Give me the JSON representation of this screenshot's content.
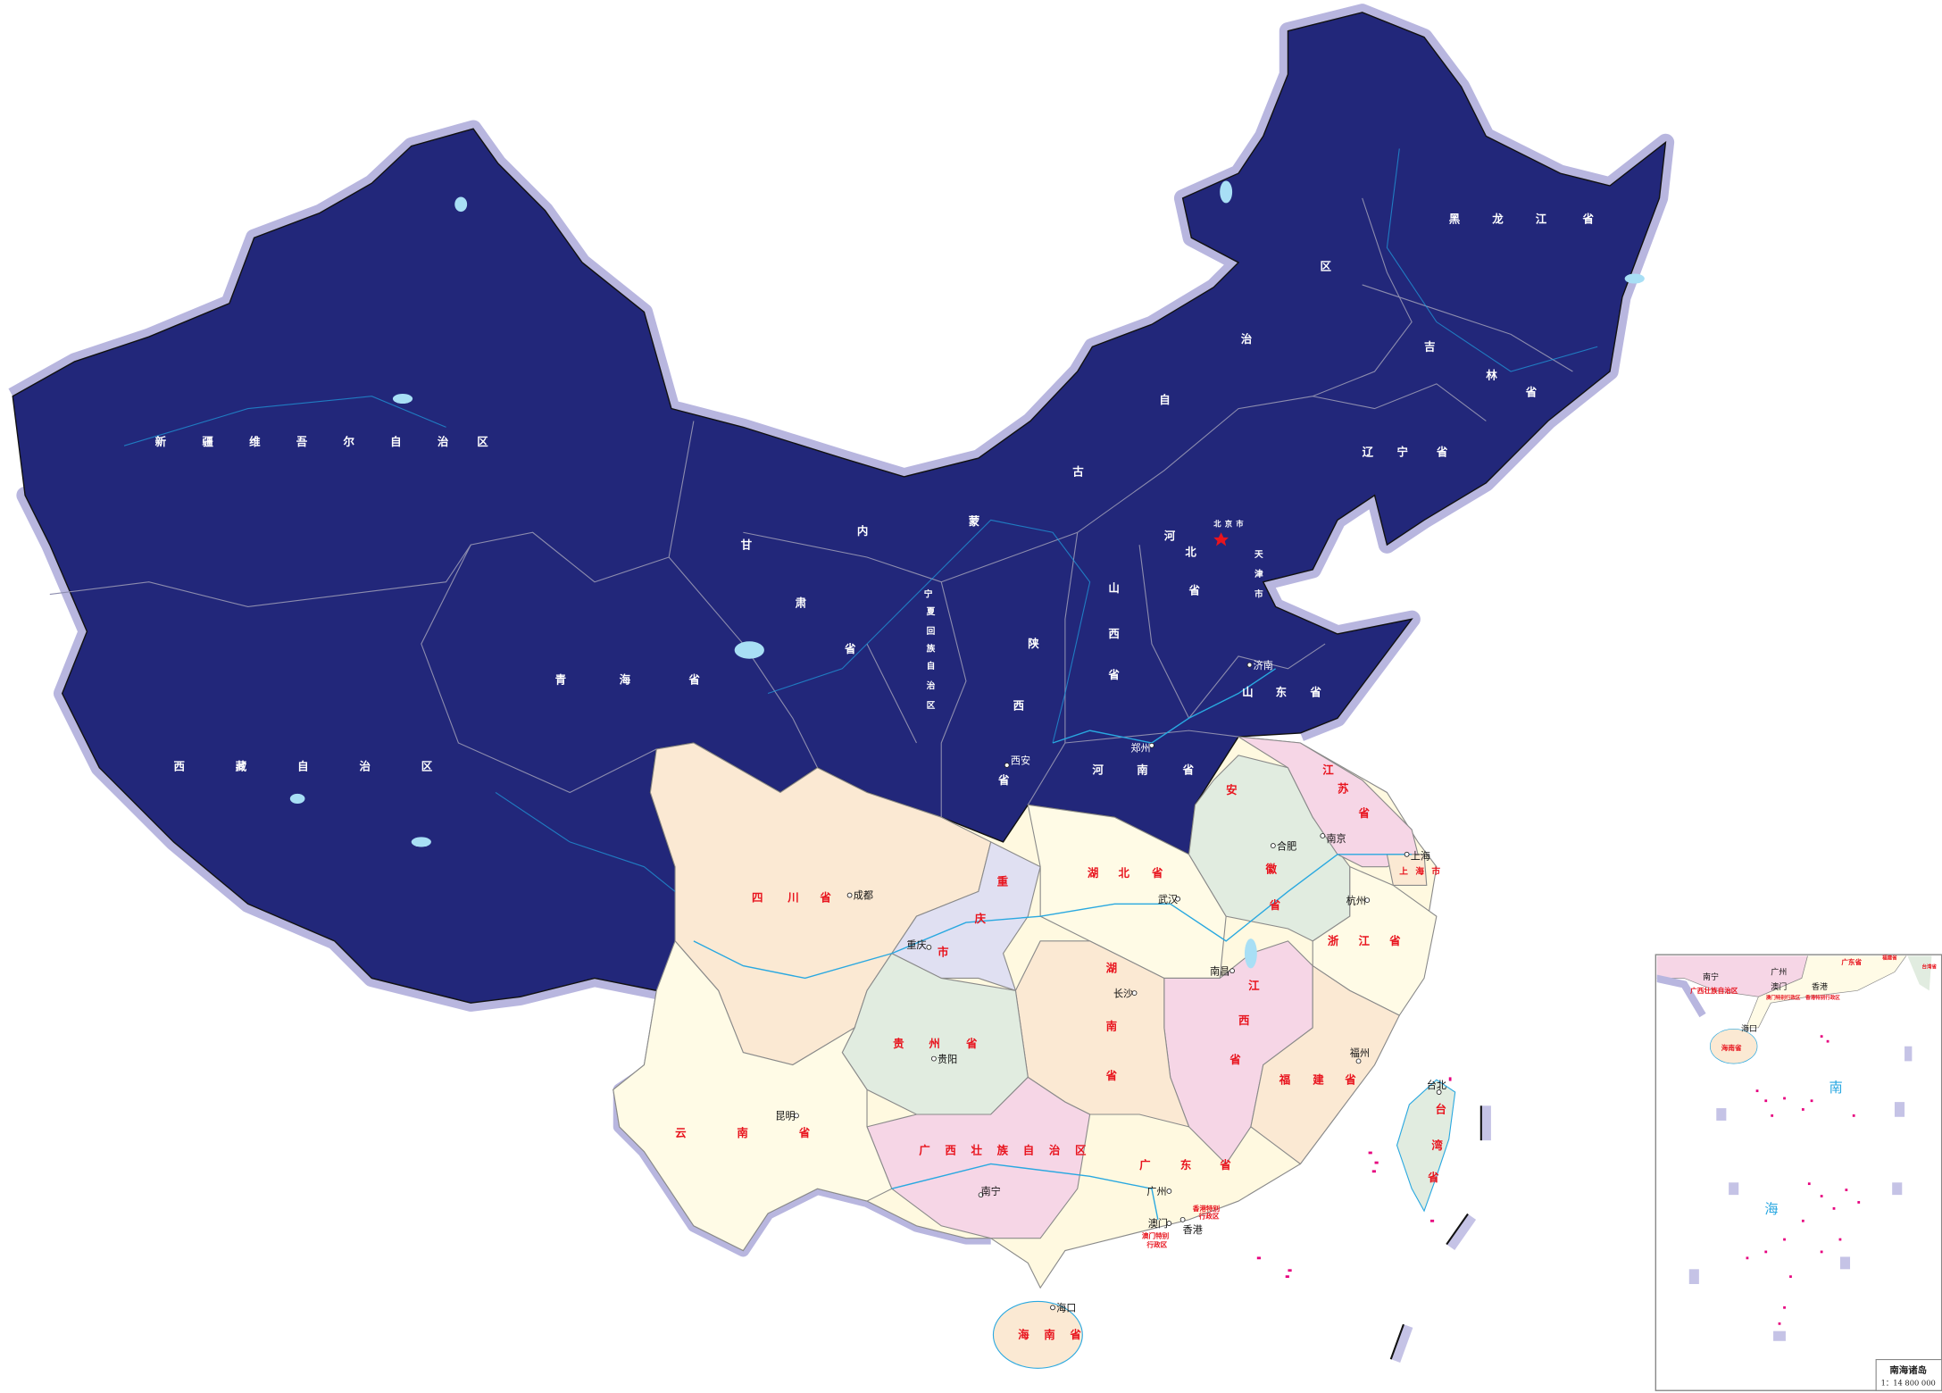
{
  "colors": {
    "north_fill": "#22277a",
    "halo": "#b8b6df",
    "peach": "#fbe9d3",
    "cream": "#fffbe6",
    "green": "#e1ece0",
    "pink": "#f6d6e6",
    "lavender": "#e0e0f2",
    "label_red": "#e8141e",
    "river": "#29a8e0",
    "island": "#e6007e"
  },
  "provinces_north": {
    "xinjiang": "新疆维吾尔自治区",
    "xizang": "西藏自治区",
    "qinghai": "青海省",
    "gansu": "甘肃省",
    "neimenggu": "内蒙古自治区",
    "heilongjiang": "黑龙江省",
    "jilin": "吉林省",
    "liaoning": "辽宁省",
    "beijing": "北京市",
    "tianjin": "天津市",
    "hebei": "河北省",
    "shanxi": "山西省",
    "shandong": "山东省",
    "henan": "河南省",
    "shaanxi": "陕西省",
    "ningxia": "宁夏回族自治区"
  },
  "provinces_south": {
    "sichuan": "四川省",
    "chongqing": "重庆市",
    "hubei": "湖北省",
    "anhui": "安徽省",
    "jiangsu": "江苏省",
    "shanghai": "上海市",
    "zhejiang": "浙江省",
    "hunan": "湖南省",
    "jiangxi": "江西省",
    "fujian": "福建省",
    "guizhou": "贵州省",
    "yunnan": "云南省",
    "guangxi": "广西壮族自治区",
    "guangdong": "广东省",
    "hainan": "海南省",
    "taiwan": "台湾省",
    "hongkong_1": "香港特别",
    "hongkong_2": "行政区",
    "macau_1": "澳门特别",
    "macau_2": "行政区"
  },
  "cities": {
    "chengdu": "成都",
    "chongqing": "重庆",
    "guiyang": "贵阳",
    "kunming": "昆明",
    "nanning": "南宁",
    "guangzhou": "广州",
    "macau": "澳门",
    "hongkong": "香港",
    "haikou": "海口",
    "changsha": "长沙",
    "wuhan": "武汉",
    "nanchang": "南昌",
    "fuzhou": "福州",
    "hangzhou": "杭州",
    "hefei": "合肥",
    "nanjing": "南京",
    "shanghai": "上海",
    "taipei": "台北",
    "jinan": "济南",
    "zhengzhou": "郑州",
    "xian": "西安"
  },
  "inset": {
    "sea_char_1": "南",
    "sea_char_2": "海",
    "title": "南海诸岛",
    "scale": "1：14 800 000",
    "labels": {
      "nanning": "南宁",
      "guangxi": "广西壮族自治区",
      "guangdong": "广东省",
      "guangzhou": "广州",
      "macau": "澳门",
      "hongkong": "香港",
      "macau_sar": "澳门特别行政区",
      "hk_sar": "香港特别行政区",
      "haikou": "海口",
      "hainan": "海南省",
      "fujian": "福建省",
      "taiwan": "台湾省"
    }
  }
}
